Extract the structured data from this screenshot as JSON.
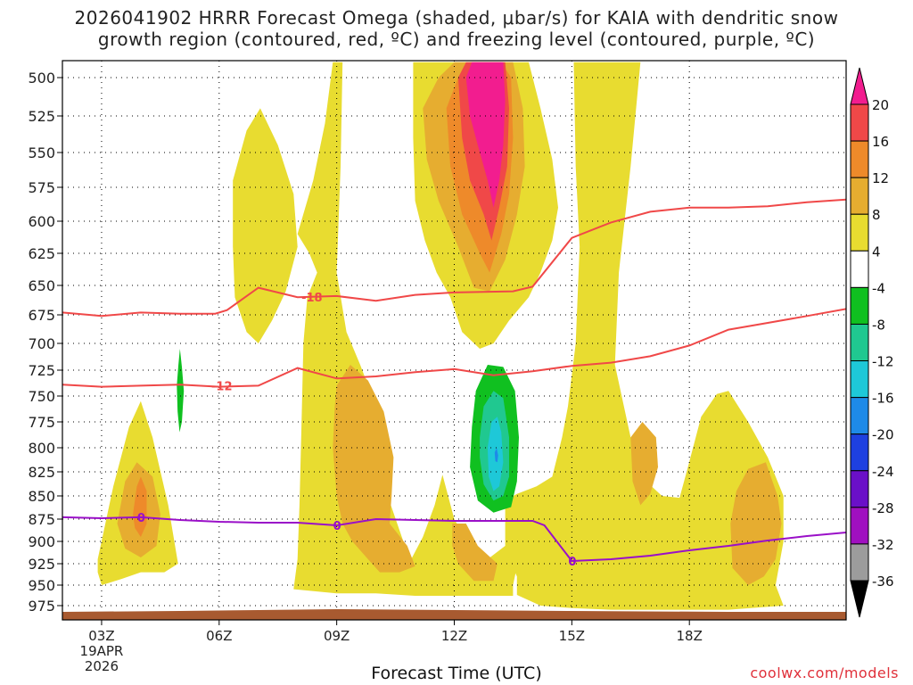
{
  "chart_data": {
    "type": "heatmap",
    "title_line1": "2026041902 HRRR Forecast Omega (shaded, μbar/s) for KAIA with dendritic snow",
    "title_line2": "growth region (contoured, red, ºC) and freezing level (contoured, purple, ºC)",
    "xlabel": "Forecast Time (UTC)",
    "watermark": "coolwx.com/models",
    "x_hours": [
      2,
      22
    ],
    "xticks": [
      {
        "hour": 3,
        "label": "03Z",
        "sub": [
          "19APR",
          "2026"
        ]
      },
      {
        "hour": 6,
        "label": "06Z",
        "sub": []
      },
      {
        "hour": 9,
        "label": "09Z",
        "sub": []
      },
      {
        "hour": 12,
        "label": "12Z",
        "sub": []
      },
      {
        "hour": 15,
        "label": "15Z",
        "sub": []
      },
      {
        "hour": 18,
        "label": "18Z",
        "sub": []
      }
    ],
    "pressure_levels": [
      500,
      525,
      550,
      575,
      600,
      625,
      650,
      675,
      700,
      725,
      750,
      775,
      800,
      825,
      850,
      875,
      900,
      925,
      950,
      975
    ],
    "ylim": [
      990,
      490
    ],
    "colorbar": {
      "labels": [
        "20",
        "16",
        "12",
        "8",
        "4",
        "-4",
        "-8",
        "-12",
        "-16",
        "-20",
        "-24",
        "-28",
        "-32",
        "-36"
      ],
      "colors": [
        "#f21d8f",
        "#f04848",
        "#ee8a2a",
        "#e6ad30",
        "#e8dc30",
        "#ffffff",
        "#10c020",
        "#20c890",
        "#1ec8d8",
        "#1e8ae8",
        "#1e40e0",
        "#6a10c8",
        "#a010c0",
        "#9c9c9c"
      ]
    },
    "omega_colors": {
      "c4": "#e8dc30",
      "c8": "#e6ad30",
      "c12": "#ee8a2a",
      "c16": "#f04848",
      "c20": "#f21d8f",
      "n4": "#10c020",
      "n8": "#20c890",
      "n12": "#1ec8d8",
      "n16": "#1e8ae8"
    },
    "ground_color": "#a85a30",
    "dgz_contours": {
      "color": "#f04848",
      "lines": [
        {
          "label": "-18",
          "label_at": {
            "hour": 8.1,
            "p": 660
          },
          "points": [
            [
              2,
              673
            ],
            [
              3,
              676
            ],
            [
              4,
              673
            ],
            [
              5,
              674
            ],
            [
              5.9,
              674
            ],
            [
              6.2,
              671
            ],
            [
              7,
              652
            ],
            [
              8,
              660
            ],
            [
              9,
              659
            ],
            [
              10,
              663
            ],
            [
              11,
              658
            ],
            [
              12,
              656
            ],
            [
              13.5,
              655
            ],
            [
              14,
              651
            ],
            [
              15,
              613
            ],
            [
              16,
              601
            ],
            [
              17,
              593
            ],
            [
              18,
              590
            ],
            [
              19,
              590
            ],
            [
              20,
              589
            ],
            [
              21,
              586
            ],
            [
              22,
              584
            ]
          ]
        },
        {
          "label": "-12",
          "label_at": {
            "hour": 5.8,
            "p": 740
          },
          "points": [
            [
              2,
              739
            ],
            [
              3,
              741
            ],
            [
              4,
              740
            ],
            [
              5,
              739
            ],
            [
              6,
              741
            ],
            [
              7,
              740
            ],
            [
              8,
              723
            ],
            [
              9,
              733
            ],
            [
              10,
              731
            ],
            [
              11,
              727
            ],
            [
              12,
              724
            ],
            [
              13,
              730
            ],
            [
              14,
              726
            ],
            [
              15,
              721
            ],
            [
              16,
              718
            ],
            [
              17,
              712
            ],
            [
              18,
              702
            ],
            [
              19,
              688
            ],
            [
              20,
              682
            ],
            [
              21,
              676
            ],
            [
              22,
              670
            ]
          ]
        }
      ]
    },
    "freezing_level": {
      "color": "#9a10c8",
      "label": "0",
      "label_points": [
        {
          "hour": 4,
          "p": 873
        },
        {
          "hour": 9,
          "p": 882
        },
        {
          "hour": 15,
          "p": 922
        }
      ],
      "points": [
        [
          2,
          873
        ],
        [
          3,
          874
        ],
        [
          4,
          873
        ],
        [
          5,
          876
        ],
        [
          6,
          878
        ],
        [
          7,
          879
        ],
        [
          8,
          879
        ],
        [
          9,
          882
        ],
        [
          10,
          875
        ],
        [
          11,
          876
        ],
        [
          12,
          877
        ],
        [
          13,
          877
        ],
        [
          14,
          877
        ],
        [
          14.3,
          882
        ],
        [
          15,
          922
        ],
        [
          16,
          920
        ],
        [
          17,
          916
        ],
        [
          18,
          910
        ],
        [
          19,
          905
        ],
        [
          20,
          899
        ],
        [
          21,
          894
        ],
        [
          22,
          890
        ]
      ]
    }
  }
}
